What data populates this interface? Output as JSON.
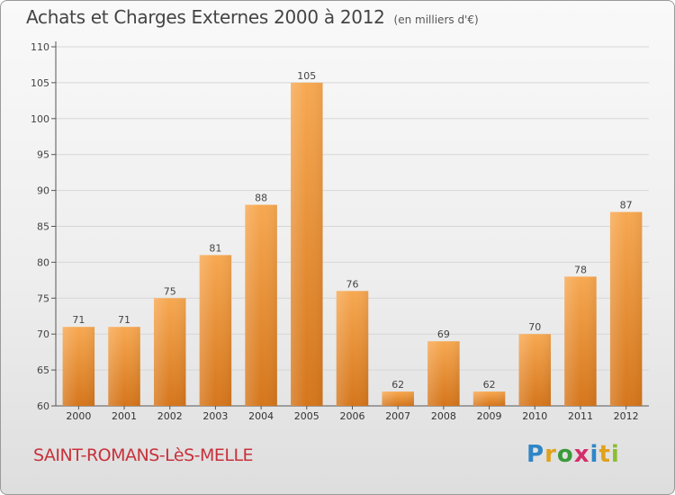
{
  "header": {
    "title": "Achats et Charges Externes 2000 à 2012",
    "unit": "(en milliers d'€)"
  },
  "footer": {
    "commune": "SAINT-ROMANS-LèS-MELLE",
    "brand_letters": [
      "P",
      "r",
      "o",
      "x",
      "i",
      "t",
      "i"
    ],
    "brand_colors": [
      "#2f86c6",
      "#e0a21d",
      "#3a9a3a",
      "#d42e6a",
      "#2f86c6",
      "#e0a21d",
      "#8cbf2f"
    ]
  },
  "colors": {
    "bar_light": "#f7a851",
    "bar_dark": "#d5761c",
    "axis": "#555555",
    "grid": "#d6d6d6",
    "commune": "#c8313b"
  },
  "chart_data": {
    "type": "bar",
    "categories": [
      "2000",
      "2001",
      "2002",
      "2003",
      "2004",
      "2005",
      "2006",
      "2007",
      "2008",
      "2009",
      "2010",
      "2011",
      "2012"
    ],
    "values": [
      71,
      71,
      75,
      81,
      88,
      105,
      76,
      62,
      69,
      62,
      70,
      78,
      87
    ],
    "title": "Achats et Charges Externes 2000 à 2012",
    "unit": "(en milliers d'€)",
    "xlabel": "",
    "ylabel": "",
    "ylim": [
      60,
      110
    ],
    "yticks": [
      60,
      65,
      70,
      75,
      80,
      85,
      90,
      95,
      100,
      105,
      110
    ],
    "grid": true,
    "legend": "none"
  }
}
